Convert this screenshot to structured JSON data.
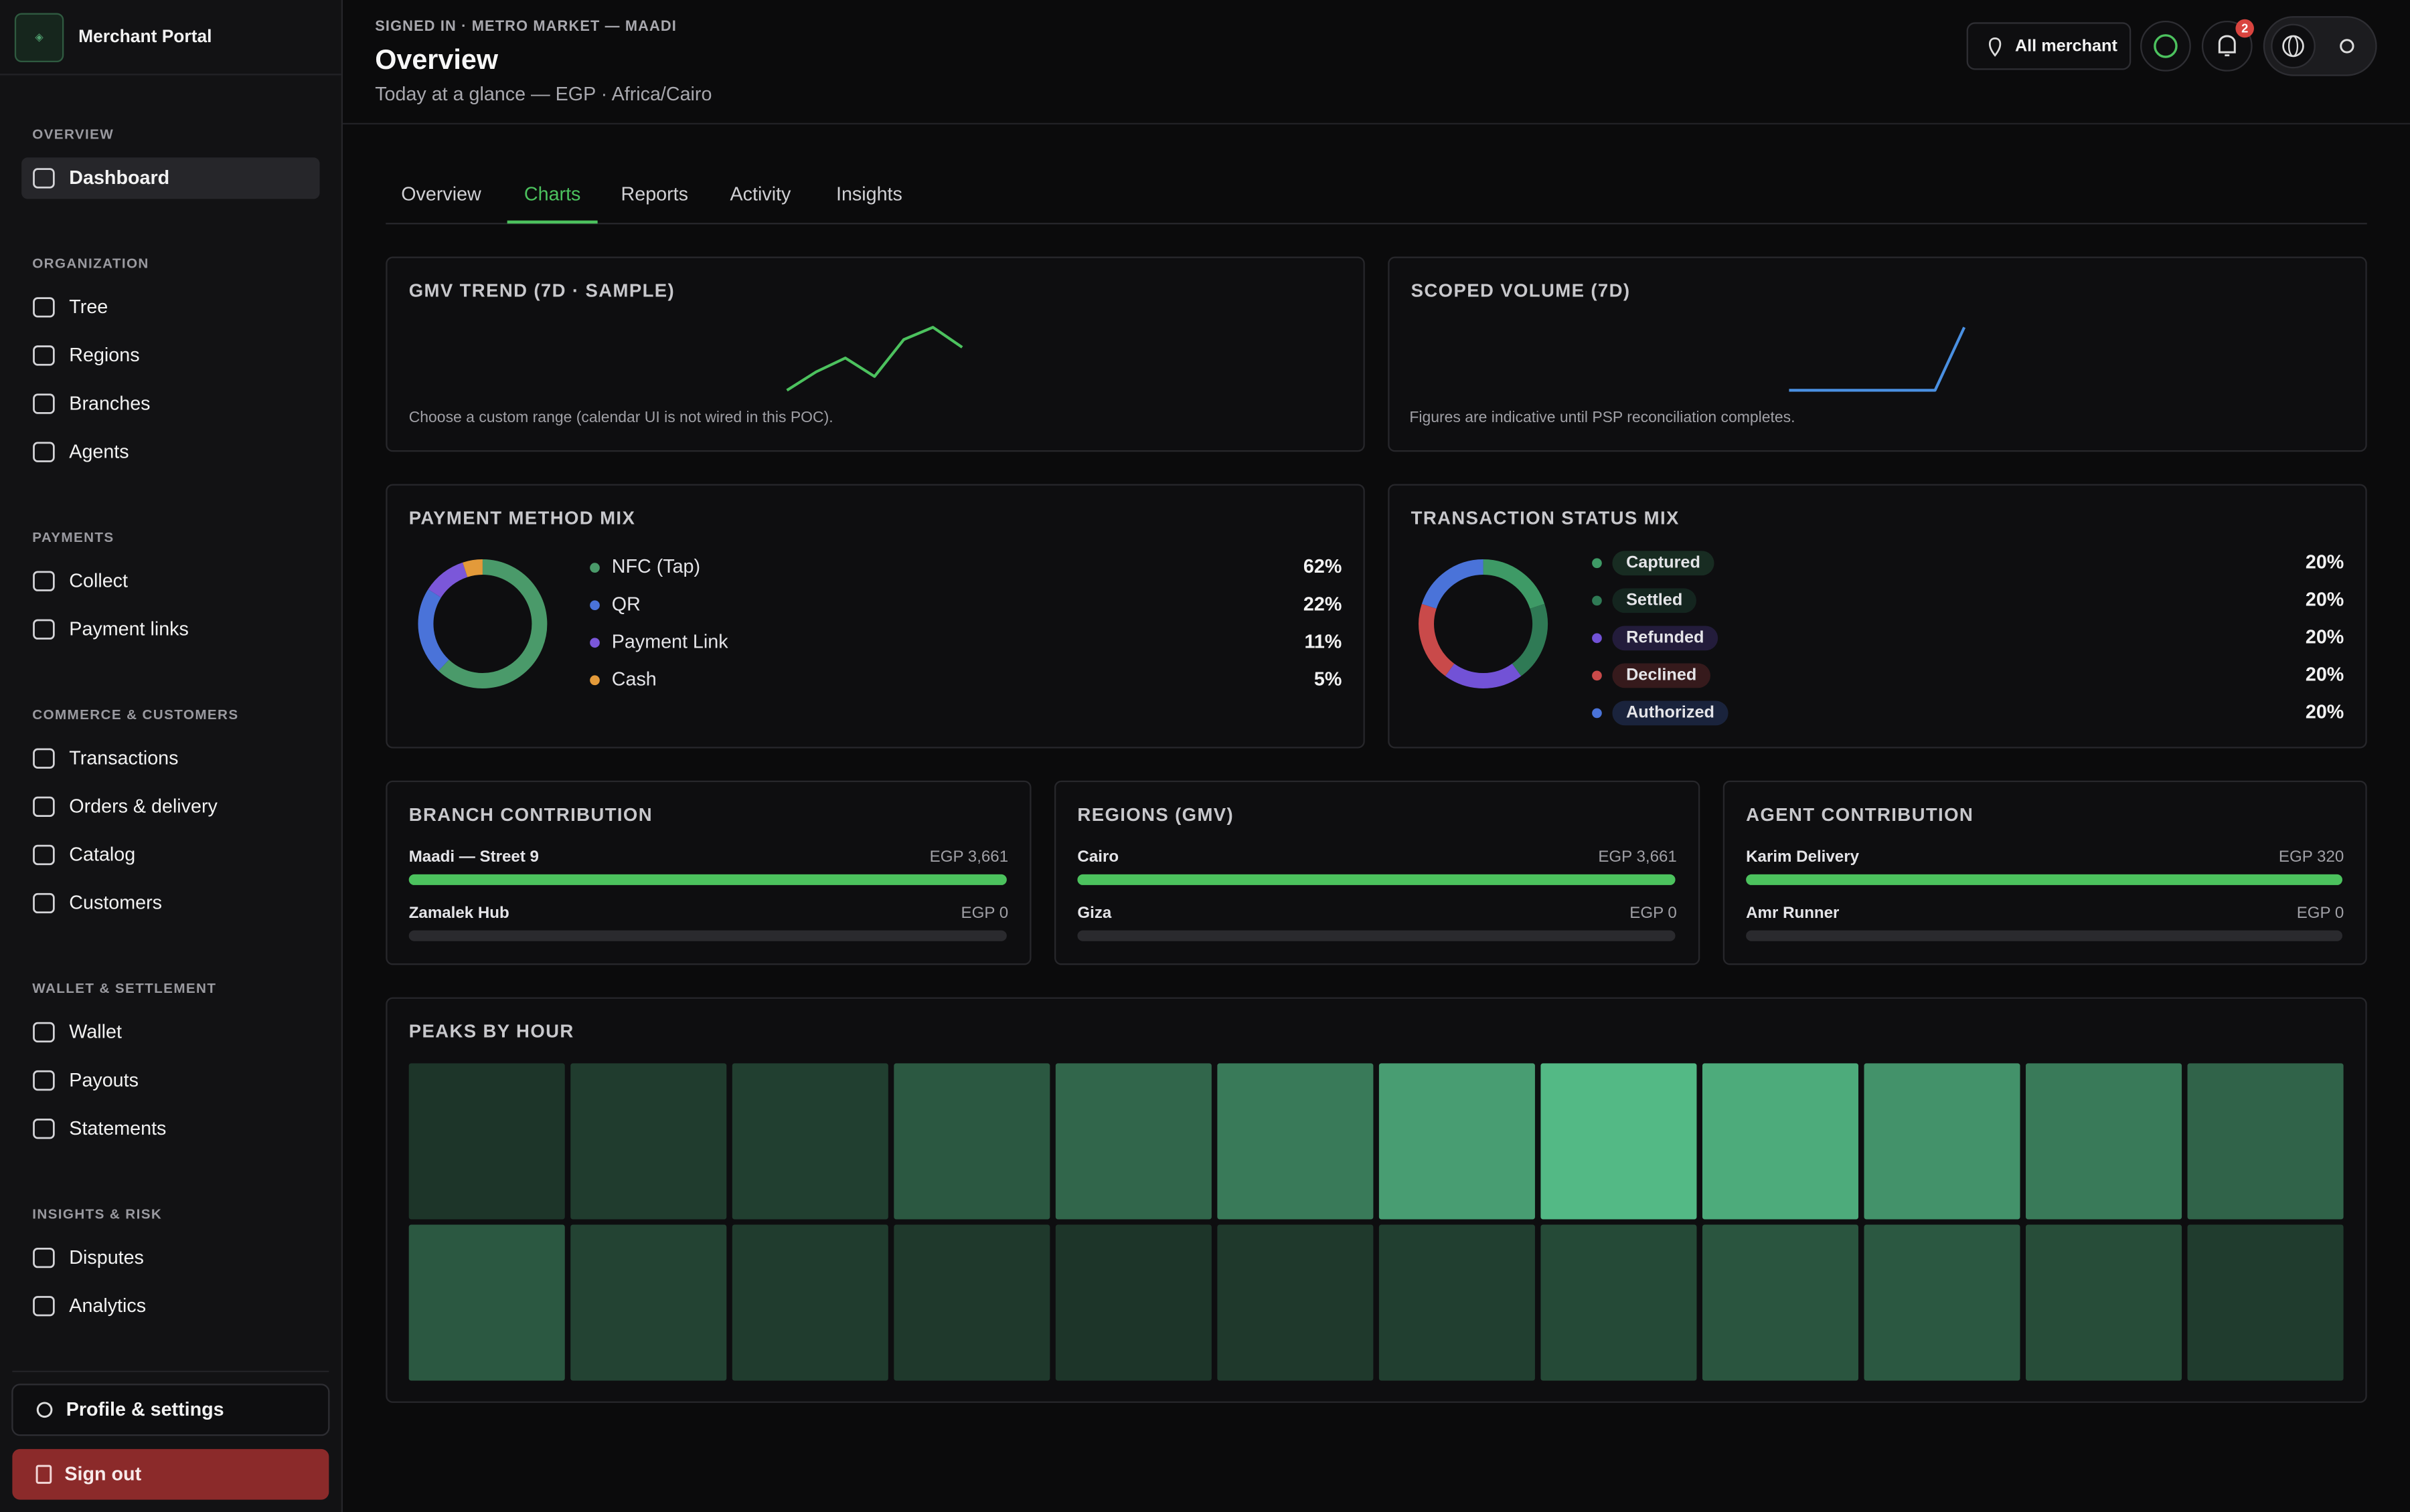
{
  "sidebar": {
    "brand": "Merchant Portal",
    "sections": [
      {
        "title": "OVERVIEW",
        "items": [
          "Dashboard"
        ]
      },
      {
        "title": "ORGANIZATION",
        "items": [
          "Tree",
          "Regions",
          "Branches",
          "Agents"
        ]
      },
      {
        "title": "PAYMENTS",
        "items": [
          "Collect",
          "Payment links"
        ]
      },
      {
        "title": "COMMERCE & CUSTOMERS",
        "items": [
          "Transactions",
          "Orders & delivery",
          "Catalog",
          "Customers"
        ]
      },
      {
        "title": "WALLET & SETTLEMENT",
        "items": [
          "Wallet",
          "Payouts",
          "Statements"
        ]
      },
      {
        "title": "INSIGHTS & RISK",
        "items": [
          "Disputes",
          "Analytics"
        ]
      }
    ],
    "active_item": "Dashboard",
    "profile": "Profile & settings",
    "sign_out": "Sign out"
  },
  "header": {
    "eyebrow": "SIGNED IN · METRO MARKET — MAADI",
    "title": "Overview",
    "subtitle": "Today at a glance — EGP · Africa/Cairo",
    "scope": "All merchant",
    "notification_count": 2
  },
  "tabs": {
    "items": [
      "Overview",
      "Charts",
      "Reports",
      "Activity",
      "Insights"
    ],
    "active": "Charts"
  },
  "gmv_trend": {
    "type": "line",
    "title": "GMV TREND (7D · SAMPLE)",
    "note": "Choose a custom range (calendar UI is not wired in this POC).",
    "values": [
      0,
      12,
      21,
      9,
      33,
      41,
      28
    ],
    "color": "#4cc25e"
  },
  "scoped_volume": {
    "type": "line",
    "title": "SCOPED VOLUME (7D)",
    "note": "Figures are indicative until PSP reconciliation completes.",
    "values": [
      0,
      0,
      0,
      0,
      0,
      0,
      41
    ],
    "color": "#4a90e2"
  },
  "payment_method_mix": {
    "type": "donut",
    "title": "PAYMENT METHOD MIX",
    "categories": [
      "NFC (Tap)",
      "QR",
      "Payment Link",
      "Cash"
    ],
    "values": [
      62,
      22,
      11,
      5
    ],
    "value_labels": [
      "62%",
      "22%",
      "11%",
      "5%"
    ],
    "colors": [
      "#4a9a6a",
      "#4a73d9",
      "#7b57d9",
      "#e39a3a"
    ]
  },
  "transaction_status_mix": {
    "type": "donut",
    "title": "TRANSACTION STATUS MIX",
    "categories": [
      "Captured",
      "Settled",
      "Refunded",
      "Declined",
      "Authorized"
    ],
    "values": [
      20,
      20,
      20,
      20,
      20
    ],
    "value_labels": [
      "20%",
      "20%",
      "20%",
      "20%",
      "20%"
    ],
    "colors": [
      "#3e9a66",
      "#2f7a55",
      "#7252d6",
      "#c94a4a",
      "#4a73d9"
    ]
  },
  "branch_contribution": {
    "type": "bar",
    "title": "BRANCH CONTRIBUTION",
    "categories": [
      "Maadi — Street 9",
      "Zamalek Hub"
    ],
    "values": [
      3661,
      0
    ],
    "value_labels": [
      "EGP 3,661",
      "EGP 0"
    ],
    "color": "#4cc25e"
  },
  "regions": {
    "type": "bar",
    "title": "REGIONS (GMV)",
    "categories": [
      "Cairo",
      "Giza"
    ],
    "values": [
      3661,
      0
    ],
    "value_labels": [
      "EGP 3,661",
      "EGP 0"
    ],
    "color": "#4cc25e"
  },
  "agent_contribution": {
    "type": "bar",
    "title": "AGENT CONTRIBUTION",
    "categories": [
      "Karim Delivery",
      "Amr Runner"
    ],
    "values": [
      320,
      0
    ],
    "value_labels": [
      "EGP 320",
      "EGP 0"
    ],
    "color": "#4cc25e"
  },
  "peaks_by_hour": {
    "type": "heatmap",
    "title": "PEAKS BY HOUR",
    "values": [
      5,
      10,
      12,
      30,
      40,
      55,
      80,
      100,
      90,
      72,
      55,
      38,
      30,
      15,
      10,
      8,
      5,
      8,
      12,
      20,
      28,
      30,
      22,
      10
    ],
    "color": "#53b985"
  }
}
